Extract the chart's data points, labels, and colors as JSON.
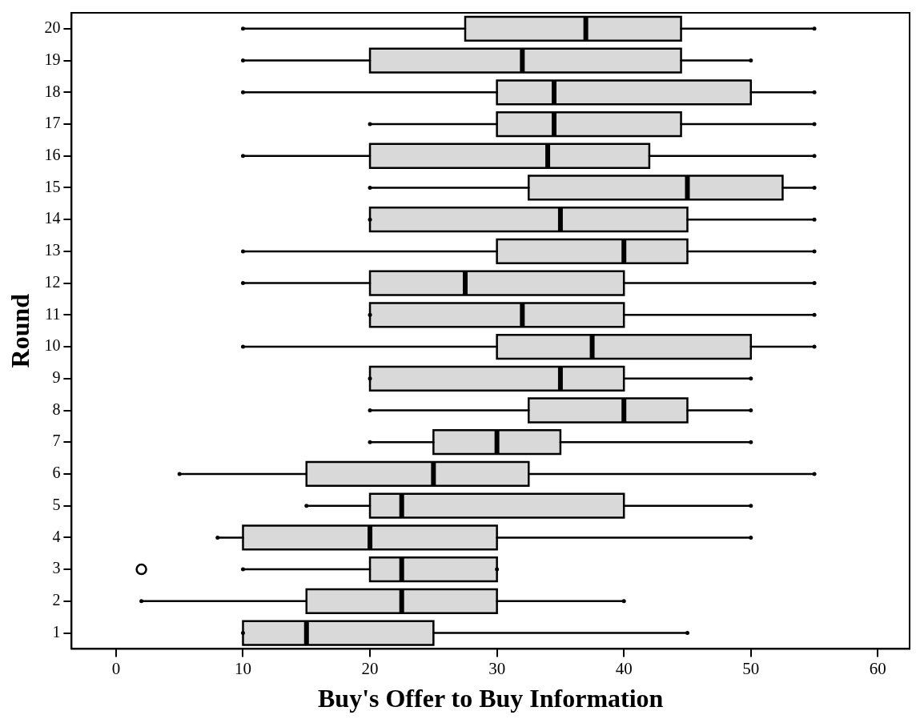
{
  "chart_data": {
    "type": "box",
    "orientation": "horizontal",
    "xlabel": "Buy's Offer to Buy Information",
    "ylabel": "Round",
    "color": "#d9d9d9",
    "categories": [
      "20",
      "19",
      "18",
      "17",
      "16",
      "15",
      "14",
      "13",
      "12",
      "11",
      "10",
      "9",
      "8",
      "7",
      "6",
      "5",
      "4",
      "3",
      "2",
      "1"
    ],
    "boxes": [
      {
        "low": 10,
        "q1": 27.5,
        "median": 37,
        "q3": 44.5,
        "high": 55
      },
      {
        "low": 10,
        "q1": 20,
        "median": 32,
        "q3": 44.5,
        "high": 50
      },
      {
        "low": 10,
        "q1": 30,
        "median": 34.5,
        "q3": 50,
        "high": 55
      },
      {
        "low": 20,
        "q1": 30,
        "median": 34.5,
        "q3": 44.5,
        "high": 55
      },
      {
        "low": 10,
        "q1": 20,
        "median": 34,
        "q3": 42,
        "high": 55
      },
      {
        "low": 20,
        "q1": 32.5,
        "median": 45,
        "q3": 52.5,
        "high": 55
      },
      {
        "low": 20,
        "q1": 20,
        "median": 35,
        "q3": 45,
        "high": 55
      },
      {
        "low": 10,
        "q1": 30,
        "median": 40,
        "q3": 45,
        "high": 55
      },
      {
        "low": 10,
        "q1": 20,
        "median": 27.5,
        "q3": 40,
        "high": 55
      },
      {
        "low": 20,
        "q1": 20,
        "median": 32,
        "q3": 40,
        "high": 55
      },
      {
        "low": 10,
        "q1": 30,
        "median": 37.5,
        "q3": 50,
        "high": 55
      },
      {
        "low": 20,
        "q1": 20,
        "median": 35,
        "q3": 40,
        "high": 50
      },
      {
        "low": 20,
        "q1": 32.5,
        "median": 40,
        "q3": 45,
        "high": 50
      },
      {
        "low": 20,
        "q1": 25,
        "median": 30,
        "q3": 35,
        "high": 50
      },
      {
        "low": 5,
        "q1": 15,
        "median": 25,
        "q3": 32.5,
        "high": 55
      },
      {
        "low": 15,
        "q1": 20,
        "median": 22.5,
        "q3": 40,
        "high": 50
      },
      {
        "low": 8,
        "q1": 10,
        "median": 20,
        "q3": 30,
        "high": 50
      },
      {
        "low": 10,
        "q1": 20,
        "median": 22.5,
        "q3": 30,
        "high": 30,
        "outliers": [
          2
        ]
      },
      {
        "low": 2,
        "q1": 15,
        "median": 22.5,
        "q3": 30,
        "high": 40
      },
      {
        "low": 10,
        "q1": 10,
        "median": 15,
        "q3": 25,
        "high": 45
      }
    ],
    "xlim": [
      -3.5,
      62.5
    ],
    "xticks": [
      0,
      10,
      20,
      30,
      40,
      50,
      60
    ],
    "grid": false,
    "legend": false
  }
}
